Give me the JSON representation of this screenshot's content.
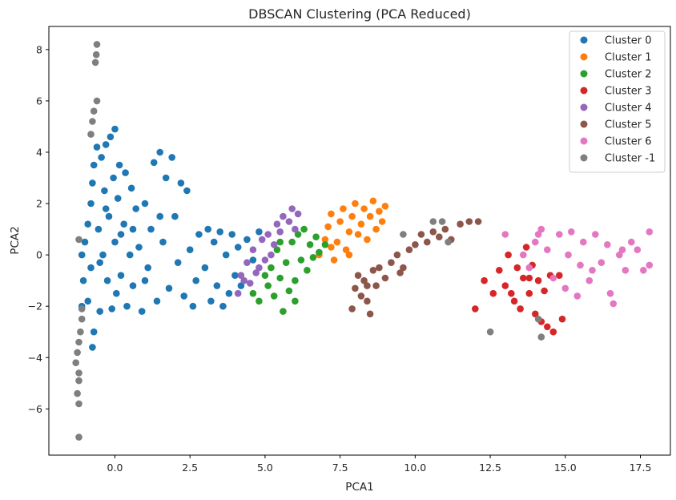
{
  "chart_data": {
    "type": "scatter",
    "title": "DBSCAN Clustering (PCA Reduced)",
    "xlabel": "PCA1",
    "ylabel": "PCA2",
    "xlim": [
      -2.2,
      18.5
    ],
    "ylim": [
      -7.8,
      8.9
    ],
    "xticks": [
      0.0,
      2.5,
      5.0,
      7.5,
      10.0,
      12.5,
      15.0,
      17.5
    ],
    "xtick_labels": [
      "0.0",
      "2.5",
      "5.0",
      "7.5",
      "10.0",
      "12.5",
      "15.0",
      "17.5"
    ],
    "yticks": [
      -6,
      -4,
      -2,
      0,
      2,
      4,
      6,
      8
    ],
    "ytick_labels": [
      "−6",
      "−4",
      "−2",
      "0",
      "2",
      "4",
      "6",
      "8"
    ],
    "grid": false,
    "legend_position": "top-right",
    "series": [
      {
        "name": "Cluster 0",
        "color": "#1f77b4",
        "points": [
          [
            -1.1,
            -2.0
          ],
          [
            -1.05,
            -1.0
          ],
          [
            -1.1,
            0.0
          ],
          [
            -1.0,
            0.5
          ],
          [
            -0.9,
            1.2
          ],
          [
            -0.9,
            -1.8
          ],
          [
            -0.8,
            2.0
          ],
          [
            -0.8,
            -0.5
          ],
          [
            -0.75,
            -3.6
          ],
          [
            -0.7,
            -3.0
          ],
          [
            -0.75,
            2.8
          ],
          [
            -0.7,
            3.5
          ],
          [
            -0.6,
            4.2
          ],
          [
            -0.55,
            1.0
          ],
          [
            -0.5,
            -2.2
          ],
          [
            -0.45,
            3.8
          ],
          [
            -0.4,
            0.0
          ],
          [
            -0.35,
            2.5
          ],
          [
            -0.3,
            4.3
          ],
          [
            -0.25,
            -1.0
          ],
          [
            -0.2,
            1.5
          ],
          [
            -0.15,
            4.6
          ],
          [
            -0.1,
            -2.1
          ],
          [
            -0.05,
            3.0
          ],
          [
            0.0,
            0.5
          ],
          [
            0.0,
            4.9
          ],
          [
            0.05,
            -1.5
          ],
          [
            0.1,
            2.2
          ],
          [
            0.15,
            3.5
          ],
          [
            0.2,
            -0.8
          ],
          [
            0.3,
            1.2
          ],
          [
            0.35,
            3.2
          ],
          [
            0.4,
            -2.0
          ],
          [
            0.5,
            0.0
          ],
          [
            0.55,
            2.6
          ],
          [
            0.6,
            -1.2
          ],
          [
            0.7,
            1.8
          ],
          [
            0.8,
            0.3
          ],
          [
            0.9,
            -2.2
          ],
          [
            1.0,
            2.0
          ],
          [
            1.1,
            -0.5
          ],
          [
            1.2,
            1.0
          ],
          [
            1.3,
            3.6
          ],
          [
            1.4,
            -1.8
          ],
          [
            1.5,
            4.0
          ],
          [
            1.6,
            0.5
          ],
          [
            1.7,
            3.0
          ],
          [
            1.8,
            -1.3
          ],
          [
            1.9,
            3.8
          ],
          [
            2.0,
            1.5
          ],
          [
            2.1,
            -0.3
          ],
          [
            2.2,
            2.8
          ],
          [
            2.3,
            -1.6
          ],
          [
            2.4,
            2.5
          ],
          [
            2.5,
            0.2
          ],
          [
            2.6,
            -2.0
          ],
          [
            2.7,
            -1.0
          ],
          [
            2.8,
            0.8
          ],
          [
            3.0,
            -0.5
          ],
          [
            3.1,
            1.0
          ],
          [
            3.2,
            -1.8
          ],
          [
            3.3,
            0.5
          ],
          [
            3.4,
            -1.2
          ],
          [
            3.5,
            0.9
          ],
          [
            3.6,
            -2.0
          ],
          [
            3.7,
            0.0
          ],
          [
            3.8,
            -1.5
          ],
          [
            3.9,
            0.8
          ],
          [
            4.0,
            -0.8
          ],
          [
            4.1,
            0.3
          ],
          [
            4.2,
            -1.2
          ],
          [
            4.4,
            0.6
          ],
          [
            4.6,
            -0.2
          ],
          [
            4.8,
            0.9
          ],
          [
            -0.5,
            -0.3
          ],
          [
            0.2,
            0.8
          ],
          [
            1.0,
            -1.0
          ],
          [
            0.6,
            1.0
          ],
          [
            -0.3,
            1.8
          ],
          [
            1.5,
            1.5
          ]
        ]
      },
      {
        "name": "Cluster 1",
        "color": "#ff7f0e",
        "points": [
          [
            6.8,
            0.0
          ],
          [
            7.0,
            0.6
          ],
          [
            7.1,
            1.1
          ],
          [
            7.2,
            1.6
          ],
          [
            7.3,
            -0.2
          ],
          [
            7.4,
            0.5
          ],
          [
            7.5,
            1.3
          ],
          [
            7.6,
            1.8
          ],
          [
            7.7,
            0.2
          ],
          [
            7.8,
            0.9
          ],
          [
            7.9,
            1.5
          ],
          [
            8.0,
            2.0
          ],
          [
            8.1,
            0.8
          ],
          [
            8.2,
            1.2
          ],
          [
            8.3,
            1.8
          ],
          [
            8.4,
            0.6
          ],
          [
            8.5,
            1.5
          ],
          [
            8.6,
            2.1
          ],
          [
            8.7,
            1.0
          ],
          [
            8.8,
            1.7
          ],
          [
            8.9,
            1.3
          ],
          [
            9.0,
            1.9
          ],
          [
            7.2,
            0.3
          ],
          [
            7.8,
            0.0
          ]
        ]
      },
      {
        "name": "Cluster 2",
        "color": "#2ca02c",
        "points": [
          [
            4.6,
            -1.5
          ],
          [
            4.8,
            -1.8
          ],
          [
            5.0,
            -0.8
          ],
          [
            5.1,
            -1.2
          ],
          [
            5.2,
            -0.5
          ],
          [
            5.3,
            -1.6
          ],
          [
            5.4,
            0.2
          ],
          [
            5.5,
            -0.9
          ],
          [
            5.6,
            -2.2
          ],
          [
            5.7,
            -0.3
          ],
          [
            5.8,
            -1.4
          ],
          [
            5.9,
            0.5
          ],
          [
            6.0,
            -1.0
          ],
          [
            6.1,
            0.8
          ],
          [
            6.2,
            -0.2
          ],
          [
            6.3,
            1.0
          ],
          [
            6.4,
            -0.6
          ],
          [
            6.5,
            0.4
          ],
          [
            6.6,
            -0.1
          ],
          [
            6.7,
            0.7
          ],
          [
            6.8,
            0.1
          ],
          [
            7.0,
            0.4
          ],
          [
            5.5,
            0.5
          ],
          [
            6.0,
            -1.8
          ]
        ]
      },
      {
        "name": "Cluster 3",
        "color": "#d62728",
        "points": [
          [
            12.0,
            -2.1
          ],
          [
            12.3,
            -1.0
          ],
          [
            12.6,
            -1.5
          ],
          [
            12.8,
            -0.6
          ],
          [
            13.0,
            -1.2
          ],
          [
            13.1,
            0.0
          ],
          [
            13.3,
            -1.8
          ],
          [
            13.4,
            -0.5
          ],
          [
            13.5,
            -2.1
          ],
          [
            13.6,
            -0.9
          ],
          [
            13.7,
            0.3
          ],
          [
            13.8,
            -1.5
          ],
          [
            13.9,
            -0.4
          ],
          [
            14.0,
            -2.3
          ],
          [
            14.1,
            -1.0
          ],
          [
            14.2,
            -2.6
          ],
          [
            14.3,
            -1.4
          ],
          [
            14.4,
            -2.8
          ],
          [
            14.5,
            -0.8
          ],
          [
            14.6,
            -3.0
          ],
          [
            14.8,
            -0.8
          ],
          [
            14.9,
            -2.5
          ],
          [
            13.2,
            -1.5
          ],
          [
            13.8,
            -0.9
          ]
        ]
      },
      {
        "name": "Cluster 4",
        "color": "#9467bd",
        "points": [
          [
            4.1,
            -1.5
          ],
          [
            4.2,
            -0.8
          ],
          [
            4.4,
            -0.3
          ],
          [
            4.5,
            -1.1
          ],
          [
            4.6,
            0.2
          ],
          [
            4.8,
            -0.5
          ],
          [
            4.9,
            0.6
          ],
          [
            5.0,
            -0.2
          ],
          [
            5.1,
            0.8
          ],
          [
            5.3,
            0.4
          ],
          [
            5.4,
            1.2
          ],
          [
            5.5,
            0.9
          ],
          [
            5.6,
            1.5
          ],
          [
            5.8,
            1.3
          ],
          [
            5.9,
            1.8
          ],
          [
            6.0,
            1.0
          ],
          [
            6.1,
            1.6
          ],
          [
            4.3,
            -1.0
          ],
          [
            4.7,
            -0.7
          ],
          [
            5.2,
            0.0
          ]
        ]
      },
      {
        "name": "Cluster 5",
        "color": "#8c564b",
        "points": [
          [
            7.9,
            -2.1
          ],
          [
            8.0,
            -1.3
          ],
          [
            8.1,
            -0.8
          ],
          [
            8.2,
            -1.6
          ],
          [
            8.3,
            -1.0
          ],
          [
            8.4,
            -1.8
          ],
          [
            8.5,
            -2.3
          ],
          [
            8.6,
            -0.6
          ],
          [
            8.7,
            -1.2
          ],
          [
            8.8,
            -0.5
          ],
          [
            9.0,
            -0.9
          ],
          [
            9.2,
            -0.3
          ],
          [
            9.4,
            0.0
          ],
          [
            9.6,
            -0.5
          ],
          [
            9.8,
            0.2
          ],
          [
            10.0,
            0.4
          ],
          [
            10.2,
            0.8
          ],
          [
            10.4,
            0.5
          ],
          [
            10.6,
            0.9
          ],
          [
            10.8,
            0.7
          ],
          [
            11.0,
            1.0
          ],
          [
            11.2,
            0.6
          ],
          [
            11.5,
            1.2
          ],
          [
            11.8,
            1.3
          ],
          [
            12.1,
            1.3
          ],
          [
            8.4,
            -1.2
          ],
          [
            9.5,
            -0.7
          ]
        ]
      },
      {
        "name": "Cluster 6",
        "color": "#e377c2",
        "points": [
          [
            13.0,
            0.8
          ],
          [
            13.6,
            0.0
          ],
          [
            13.8,
            -0.5
          ],
          [
            14.0,
            0.5
          ],
          [
            14.2,
            1.0
          ],
          [
            14.4,
            0.2
          ],
          [
            14.6,
            -0.9
          ],
          [
            14.8,
            0.8
          ],
          [
            15.0,
            -1.3
          ],
          [
            15.1,
            0.0
          ],
          [
            15.2,
            0.9
          ],
          [
            15.4,
            -1.6
          ],
          [
            15.5,
            -0.4
          ],
          [
            15.6,
            0.5
          ],
          [
            15.8,
            -1.0
          ],
          [
            16.0,
            0.8
          ],
          [
            16.2,
            -0.3
          ],
          [
            16.4,
            0.4
          ],
          [
            16.5,
            -1.5
          ],
          [
            16.6,
            -1.9
          ],
          [
            16.8,
            0.0
          ],
          [
            17.0,
            -0.6
          ],
          [
            17.2,
            0.5
          ],
          [
            17.4,
            0.2
          ],
          [
            17.6,
            -0.6
          ],
          [
            17.8,
            0.9
          ],
          [
            17.8,
            -0.4
          ],
          [
            15.9,
            -0.6
          ],
          [
            16.9,
            0.2
          ],
          [
            14.1,
            0.8
          ]
        ]
      },
      {
        "name": "Cluster -1",
        "color": "#7f7f7f",
        "points": [
          [
            -0.6,
            8.2
          ],
          [
            -0.62,
            7.8
          ],
          [
            -0.65,
            7.5
          ],
          [
            -0.6,
            6.0
          ],
          [
            -0.7,
            5.6
          ],
          [
            -0.75,
            5.2
          ],
          [
            -0.8,
            4.7
          ],
          [
            -1.2,
            0.6
          ],
          [
            -1.1,
            -2.1
          ],
          [
            -1.1,
            -2.5
          ],
          [
            -1.15,
            -3.0
          ],
          [
            -1.2,
            -3.4
          ],
          [
            -1.25,
            -3.8
          ],
          [
            -1.3,
            -4.2
          ],
          [
            -1.2,
            -4.6
          ],
          [
            -1.2,
            -4.9
          ],
          [
            -1.25,
            -5.4
          ],
          [
            -1.2,
            -5.8
          ],
          [
            -1.2,
            -7.1
          ],
          [
            9.6,
            0.8
          ],
          [
            10.6,
            1.3
          ],
          [
            10.9,
            1.3
          ],
          [
            11.1,
            0.5
          ],
          [
            12.5,
            -3.0
          ],
          [
            14.1,
            -2.5
          ],
          [
            14.2,
            -3.2
          ]
        ]
      }
    ]
  }
}
